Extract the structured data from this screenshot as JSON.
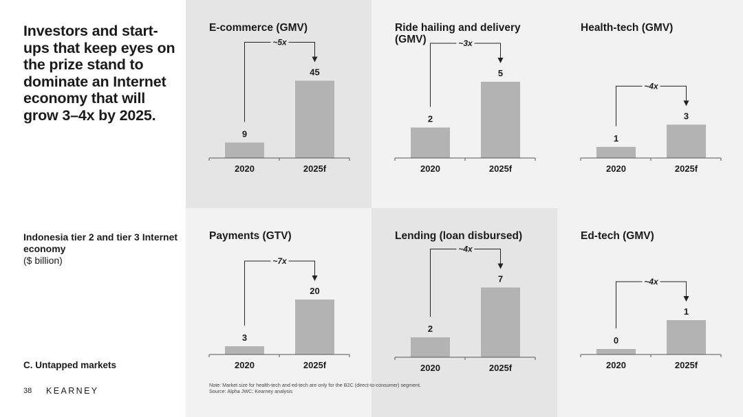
{
  "colors": {
    "accent": "#8a2be2",
    "bar": "#b3b3b3",
    "panel_light": "#f2f2f2",
    "panel_dark": "#e5e5e5"
  },
  "headline": "Investors and start-ups that keep eyes on the prize stand to dominate an Internet economy that will grow 3–4x by 2025.",
  "subtitle": {
    "line1": "Indonesia tier 2 and tier 3 Internet economy",
    "line2": "($ billion)"
  },
  "section_label": "C. Untapped markets",
  "page_number": "38",
  "logo": "KEARNEY",
  "note": {
    "line1": "Note: Market size for health-tech and ed-tech are only for the B2C (direct-to-consumer) segment.",
    "line2": "Source: Alpha JWC; Kearney analysis"
  },
  "panels": [
    {
      "title": "E-commerce (GMV)",
      "multiplier": "~5x"
    },
    {
      "title": "Ride hailing and delivery (GMV)",
      "multiplier": "~3x"
    },
    {
      "title": "Health-tech (GMV)",
      "multiplier": "~4x"
    },
    {
      "title": "Payments (GTV)",
      "multiplier": "~7x"
    },
    {
      "title": "Lending (loan disbursed)",
      "multiplier": "~4x"
    },
    {
      "title": "Ed-tech (GMV)",
      "multiplier": "~4x"
    }
  ],
  "chart_data": [
    {
      "type": "bar",
      "title": "E-commerce (GMV)",
      "categories": [
        "2020",
        "2025f"
      ],
      "values": [
        9,
        45
      ],
      "annotation": "~5x"
    },
    {
      "type": "bar",
      "title": "Ride hailing and delivery (GMV)",
      "categories": [
        "2020",
        "2025f"
      ],
      "values": [
        2,
        5
      ],
      "annotation": "~3x"
    },
    {
      "type": "bar",
      "title": "Health-tech (GMV)",
      "categories": [
        "2020",
        "2025f"
      ],
      "values": [
        1,
        3
      ],
      "annotation": "~4x"
    },
    {
      "type": "bar",
      "title": "Payments (GTV)",
      "categories": [
        "2020",
        "2025f"
      ],
      "values": [
        3,
        20
      ],
      "annotation": "~7x"
    },
    {
      "type": "bar",
      "title": "Lending (loan disbursed)",
      "categories": [
        "2020",
        "2025f"
      ],
      "values": [
        2,
        7
      ],
      "annotation": "~4x"
    },
    {
      "type": "bar",
      "title": "Ed-tech (GMV)",
      "categories": [
        "2020",
        "2025f"
      ],
      "values": [
        0,
        1
      ],
      "annotation": "~4x"
    }
  ]
}
